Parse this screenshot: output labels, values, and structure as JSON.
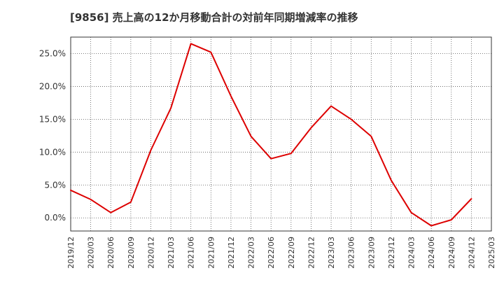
{
  "chart_data": {
    "type": "line",
    "title": "[9856]  売上高の12か月移動合計の対前年同期増減率の推移",
    "xlabel": "",
    "ylabel": "",
    "ylim": [
      -2.0,
      27.5
    ],
    "y_ticks": [
      0,
      5,
      10,
      15,
      20,
      25
    ],
    "y_tick_labels": [
      "0.0%",
      "5.0%",
      "10.0%",
      "15.0%",
      "20.0%",
      "25.0%"
    ],
    "x_tick_labels": [
      "2019/12",
      "2020/03",
      "2020/06",
      "2020/09",
      "2020/12",
      "2021/03",
      "2021/06",
      "2021/09",
      "2021/12",
      "2022/03",
      "2022/06",
      "2022/09",
      "2022/12",
      "2023/03",
      "2023/06",
      "2023/09",
      "2023/12",
      "2024/03",
      "2024/06",
      "2024/09",
      "2024/12",
      "2025/03"
    ],
    "grid": true,
    "series": [
      {
        "name": "増減率",
        "color": "#dd0000",
        "x": [
          "2019/12",
          "2020/03",
          "2020/06",
          "2020/09",
          "2020/12",
          "2021/03",
          "2021/06",
          "2021/09",
          "2021/12",
          "2022/03",
          "2022/06",
          "2022/09",
          "2022/12",
          "2023/03",
          "2023/06",
          "2023/09",
          "2023/12",
          "2024/03",
          "2024/06",
          "2024/09",
          "2024/12"
        ],
        "values": [
          4.2,
          2.8,
          0.8,
          2.4,
          10.3,
          16.7,
          26.5,
          25.2,
          18.5,
          12.4,
          9.0,
          9.8,
          13.7,
          17.0,
          15.0,
          12.4,
          5.7,
          0.8,
          -1.2,
          -0.3,
          2.9
        ]
      }
    ]
  }
}
